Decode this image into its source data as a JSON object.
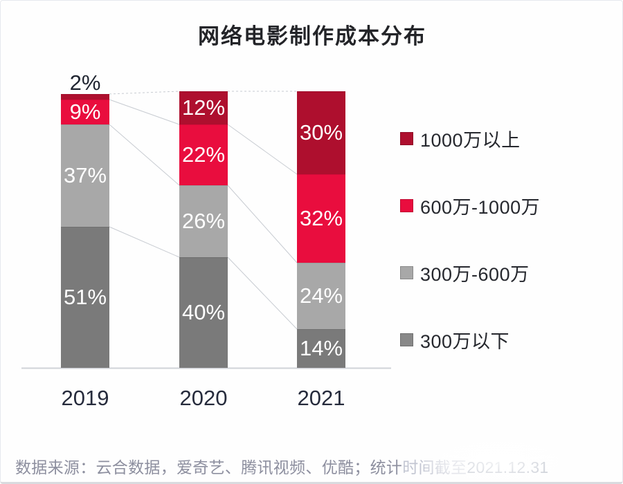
{
  "chart_data": {
    "type": "bar",
    "variant": "stacked-100-percent-column",
    "title": "网络电影制作成本分布",
    "categories": [
      "2019",
      "2020",
      "2021"
    ],
    "series": [
      {
        "name": "300万以下",
        "color": "#7a7a7a",
        "values": [
          51,
          40,
          14
        ]
      },
      {
        "name": "300万-600万",
        "color": "#a8a8a8",
        "values": [
          37,
          26,
          24
        ]
      },
      {
        "name": "600万-1000万",
        "color": "#e90d3e",
        "values": [
          9,
          22,
          32
        ]
      },
      {
        "name": "1000万以上",
        "color": "#ae0f2e",
        "values": [
          2,
          12,
          30
        ]
      }
    ],
    "unit": "%",
    "ylim": [
      0,
      100
    ],
    "grid": false,
    "connectors": true,
    "legend": {
      "position": "right",
      "items": [
        {
          "label": "1000万以上",
          "color": "#ae0f2e"
        },
        {
          "label": "600万-1000万",
          "color": "#e90d3e"
        },
        {
          "label": "300万-600万",
          "color": "#a8a8a8"
        },
        {
          "label": "300万以下",
          "color": "#888888"
        }
      ]
    }
  },
  "source": {
    "prefix": "数据来源：云合数据，爱奇艺、腾讯视频、优酷；统计",
    "faded": "时间截至",
    "date": "2021.12.31"
  }
}
